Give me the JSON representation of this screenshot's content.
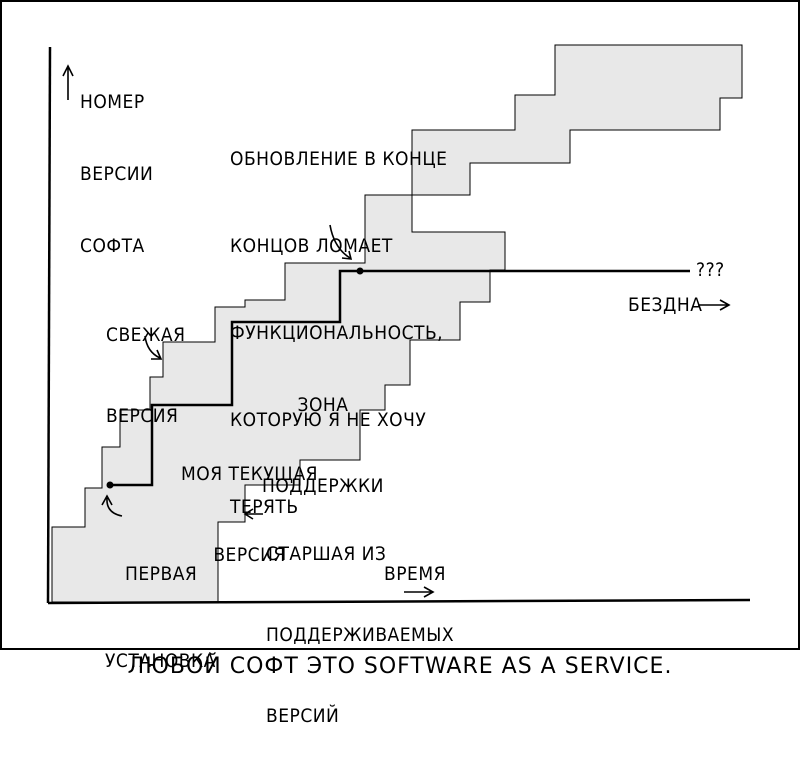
{
  "comic": {
    "caption": "ЛЮБОЙ СОФТ ЭТО SOFTWARE AS A SERVICE.",
    "y_axis_label": [
      "НОМЕР",
      "ВЕРСИИ",
      "СОФТА"
    ],
    "x_axis_label": "ВРЕМЯ",
    "labels": {
      "update": [
        "ОБНОВЛЕНИЕ В КОНЦЕ",
        "КОНЦОВ ЛОМАЕТ",
        "ФУНКЦИОНАЛЬНОСТЬ,",
        "КОТОРУЮ Я НЕ ХОЧУ",
        "ТЕРЯТЬ"
      ],
      "fresh": [
        "СВЕЖАЯ",
        "ВЕРСИЯ"
      ],
      "support_zone": [
        "ЗОНА",
        "ПОДДЕРЖКИ"
      ],
      "current": [
        "МОЯ ТЕКУЩАЯ",
        "ВЕРСИЯ"
      ],
      "first_install": [
        "ПЕРВАЯ",
        "УСТАНОВКА"
      ],
      "oldest": [
        "СТАРШАЯ ИЗ",
        "ПОДДЕРЖИВАЕМЫХ",
        "ВЕРСИЙ"
      ],
      "abyss": "БЕЗДНА",
      "question": "???"
    }
  },
  "colors": {
    "band": "#e8e8e8",
    "ink": "#000000"
  }
}
